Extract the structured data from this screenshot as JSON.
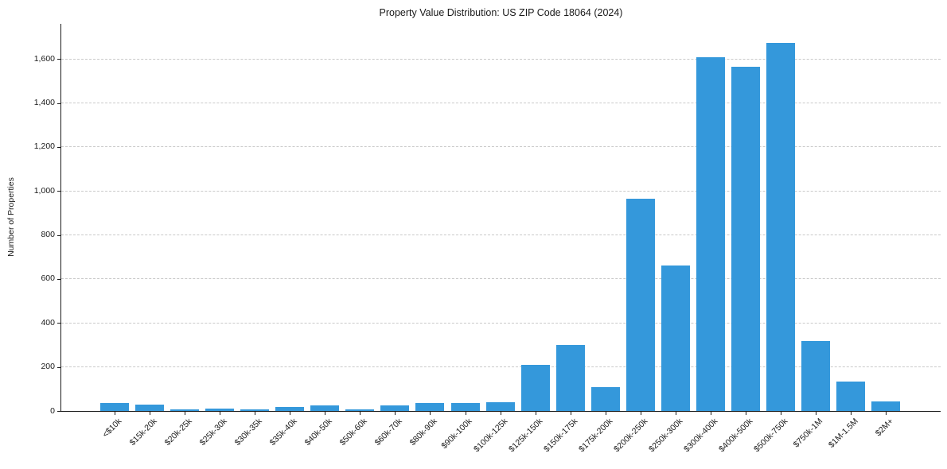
{
  "chart_data": {
    "type": "bar",
    "title": "Property Value Distribution: US ZIP Code 18064 (2024)",
    "xlabel": "",
    "ylabel": "Number of Properties",
    "categories": [
      "<$10k",
      "$15k-20k",
      "$20k-25k",
      "$25k-30k",
      "$30k-35k",
      "$35k-40k",
      "$40k-50k",
      "$50k-60k",
      "$60k-70k",
      "$80k-90k",
      "$90k-100k",
      "$100k-125k",
      "$125k-150k",
      "$150k-175k",
      "$175k-200k",
      "$200k-250k",
      "$250k-300k",
      "$300k-400k",
      "$400k-500k",
      "$500k-750k",
      "$750k-1M",
      "$1M-1.5M",
      "$2M+"
    ],
    "values": [
      35,
      30,
      7,
      12,
      7,
      18,
      25,
      7,
      26,
      35,
      36,
      41,
      208,
      300,
      108,
      965,
      663,
      1610,
      1565,
      1672,
      318,
      132,
      44
    ],
    "ylim": [
      0,
      1760
    ],
    "yticks": [
      0,
      200,
      400,
      600,
      800,
      1000,
      1200,
      1400,
      1600
    ],
    "ytick_labels": [
      "0",
      "200",
      "400",
      "600",
      "800",
      "1,000",
      "1,200",
      "1,400",
      "1,600"
    ],
    "grid": "horizontal-dashed",
    "legend": "none",
    "bar_color": "#3498db",
    "background_color": "#ffffff",
    "gridline_color": "#c9c9c9",
    "axis_color": "#1a1a1a"
  }
}
